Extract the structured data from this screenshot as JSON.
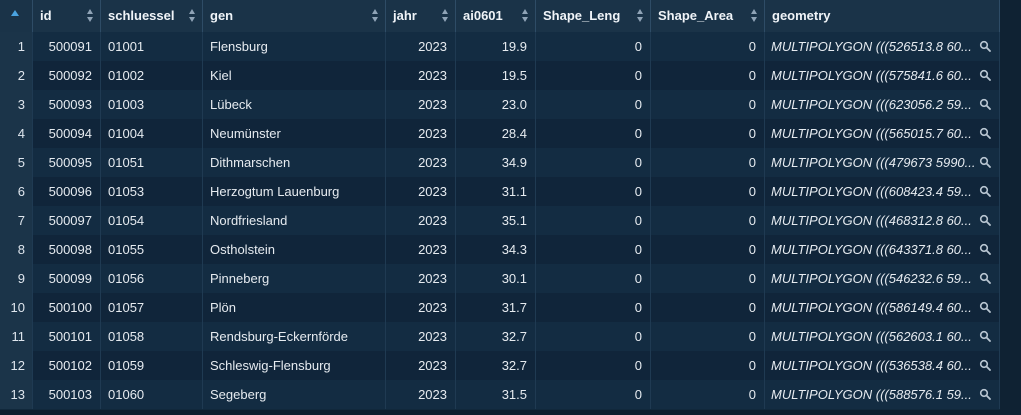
{
  "columns": [
    {
      "key": "rownum",
      "label": ""
    },
    {
      "key": "id",
      "label": "id"
    },
    {
      "key": "schluessel",
      "label": "schluessel"
    },
    {
      "key": "gen",
      "label": "gen"
    },
    {
      "key": "jahr",
      "label": "jahr"
    },
    {
      "key": "ai0601",
      "label": "ai0601"
    },
    {
      "key": "shape_leng",
      "label": "Shape_Leng"
    },
    {
      "key": "shape_area",
      "label": "Shape_Area"
    },
    {
      "key": "geometry",
      "label": "geometry"
    }
  ],
  "rows": [
    {
      "rownum": "1",
      "id": "500091",
      "schluessel": "01001",
      "gen": "Flensburg",
      "jahr": "2023",
      "ai0601": "19.9",
      "shape_leng": "0",
      "shape_area": "0",
      "geometry": "MULTIPOLYGON (((526513.8 60..."
    },
    {
      "rownum": "2",
      "id": "500092",
      "schluessel": "01002",
      "gen": "Kiel",
      "jahr": "2023",
      "ai0601": "19.5",
      "shape_leng": "0",
      "shape_area": "0",
      "geometry": "MULTIPOLYGON (((575841.6 60..."
    },
    {
      "rownum": "3",
      "id": "500093",
      "schluessel": "01003",
      "gen": "Lübeck",
      "jahr": "2023",
      "ai0601": "23.0",
      "shape_leng": "0",
      "shape_area": "0",
      "geometry": "MULTIPOLYGON (((623056.2 59..."
    },
    {
      "rownum": "4",
      "id": "500094",
      "schluessel": "01004",
      "gen": "Neumünster",
      "jahr": "2023",
      "ai0601": "28.4",
      "shape_leng": "0",
      "shape_area": "0",
      "geometry": "MULTIPOLYGON (((565015.7 60..."
    },
    {
      "rownum": "5",
      "id": "500095",
      "schluessel": "01051",
      "gen": "Dithmarschen",
      "jahr": "2023",
      "ai0601": "34.9",
      "shape_leng": "0",
      "shape_area": "0",
      "geometry": "MULTIPOLYGON (((479673 5990..."
    },
    {
      "rownum": "6",
      "id": "500096",
      "schluessel": "01053",
      "gen": "Herzogtum Lauenburg",
      "jahr": "2023",
      "ai0601": "31.1",
      "shape_leng": "0",
      "shape_area": "0",
      "geometry": "MULTIPOLYGON (((608423.4 59..."
    },
    {
      "rownum": "7",
      "id": "500097",
      "schluessel": "01054",
      "gen": "Nordfriesland",
      "jahr": "2023",
      "ai0601": "35.1",
      "shape_leng": "0",
      "shape_area": "0",
      "geometry": "MULTIPOLYGON (((468312.8 60..."
    },
    {
      "rownum": "8",
      "id": "500098",
      "schluessel": "01055",
      "gen": "Ostholstein",
      "jahr": "2023",
      "ai0601": "34.3",
      "shape_leng": "0",
      "shape_area": "0",
      "geometry": "MULTIPOLYGON (((643371.8 60..."
    },
    {
      "rownum": "9",
      "id": "500099",
      "schluessel": "01056",
      "gen": "Pinneberg",
      "jahr": "2023",
      "ai0601": "30.1",
      "shape_leng": "0",
      "shape_area": "0",
      "geometry": "MULTIPOLYGON (((546232.6 59..."
    },
    {
      "rownum": "10",
      "id": "500100",
      "schluessel": "01057",
      "gen": "Plön",
      "jahr": "2023",
      "ai0601": "31.7",
      "shape_leng": "0",
      "shape_area": "0",
      "geometry": "MULTIPOLYGON (((586149.4 60..."
    },
    {
      "rownum": "11",
      "id": "500101",
      "schluessel": "01058",
      "gen": "Rendsburg-Eckernförde",
      "jahr": "2023",
      "ai0601": "32.7",
      "shape_leng": "0",
      "shape_area": "0",
      "geometry": "MULTIPOLYGON (((562603.1 60..."
    },
    {
      "rownum": "12",
      "id": "500102",
      "schluessel": "01059",
      "gen": "Schleswig-Flensburg",
      "jahr": "2023",
      "ai0601": "32.7",
      "shape_leng": "0",
      "shape_area": "0",
      "geometry": "MULTIPOLYGON (((536538.4 60..."
    },
    {
      "rownum": "13",
      "id": "500103",
      "schluessel": "01060",
      "gen": "Segeberg",
      "jahr": "2023",
      "ai0601": "31.5",
      "shape_leng": "0",
      "shape_area": "0",
      "geometry": "MULTIPOLYGON (((588576.1 59..."
    }
  ],
  "icons": {
    "sort": "sort-arrows-icon",
    "row_sort": "sort-ascending-icon",
    "inspect": "magnifier-icon"
  },
  "colors": {
    "background": "#11283b",
    "header": "#1a3348",
    "accent": "#4aa3e0"
  }
}
